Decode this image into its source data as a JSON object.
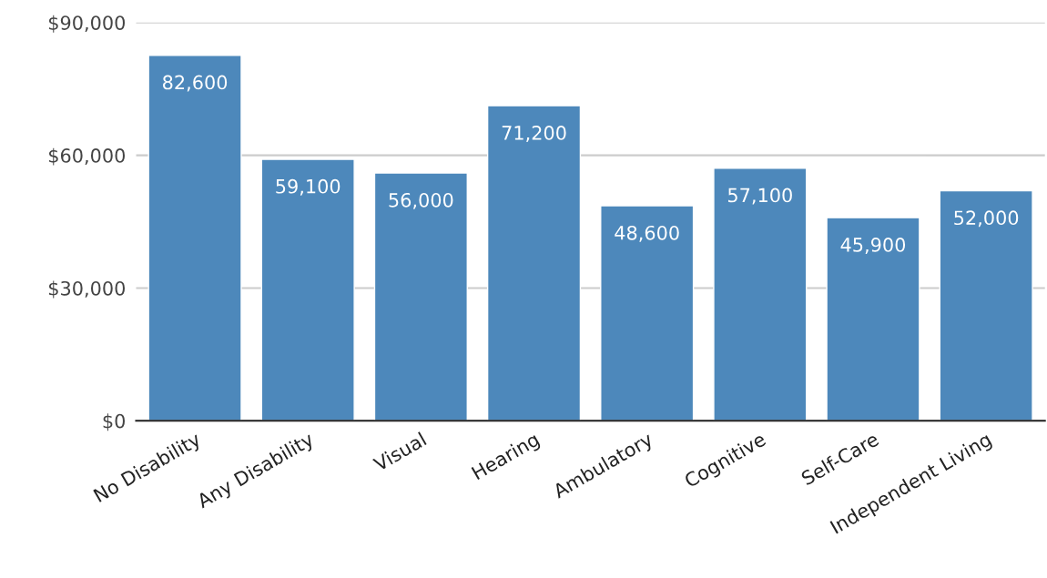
{
  "chart_data": {
    "type": "bar",
    "categories": [
      "No Disability",
      "Any Disability",
      "Visual",
      "Hearing",
      "Ambulatory",
      "Cognitive",
      "Self-Care",
      "Independent Living"
    ],
    "values": [
      82600,
      59100,
      56000,
      71200,
      48600,
      57100,
      45900,
      52000
    ],
    "color": "#4d88bb",
    "ylim": [
      0,
      90000
    ],
    "yticks": [
      {
        "value": 0,
        "label": "$0"
      },
      {
        "value": 30000,
        "label": "$30,000"
      },
      {
        "value": 60000,
        "label": "$60,000"
      },
      {
        "value": 90000,
        "label": "$90,000"
      }
    ],
    "grid": "y",
    "value_labels": [
      "82,600",
      "59,100",
      "56,000",
      "71,200",
      "48,600",
      "57,100",
      "45,900",
      "52,000"
    ]
  }
}
